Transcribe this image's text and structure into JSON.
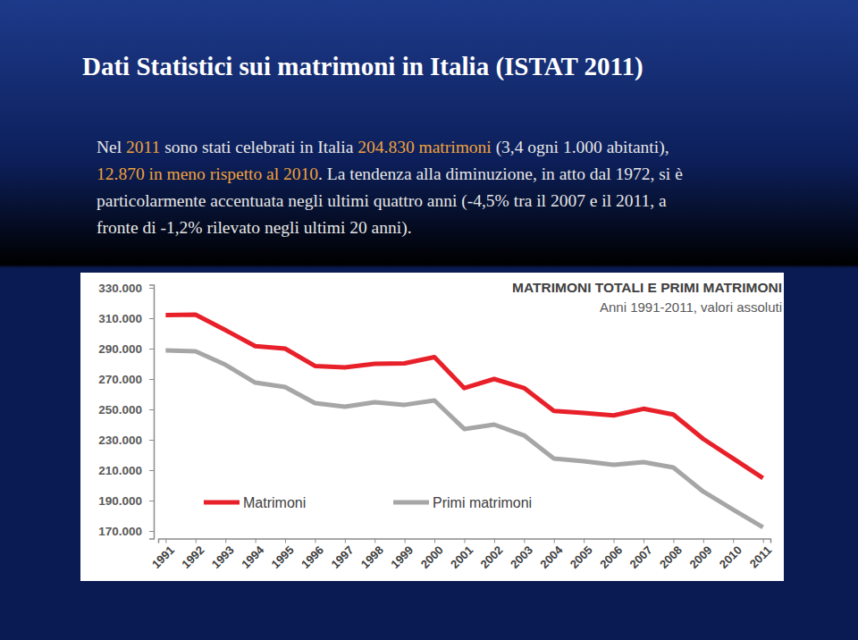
{
  "slide": {
    "title": "Dati Statistici sui matrimoni in Italia (ISTAT 2011)",
    "paragraph": [
      [
        {
          "text": "Nel ",
          "color": "#e6e6e6"
        },
        {
          "text": "2011",
          "color": "#f0a23c"
        },
        {
          "text": " sono stati celebrati in Italia ",
          "color": "#e6e6e6"
        },
        {
          "text": "204.830 matrimoni",
          "color": "#f0a23c"
        },
        {
          "text": " (3,4 ogni 1.000 abitanti),",
          "color": "#e6e6e6"
        }
      ],
      [
        {
          "text": "12.870 in meno rispetto al 2010",
          "color": "#f0a23c"
        },
        {
          "text": ". La tendenza alla diminuzione, in atto dal 1972, si è",
          "color": "#e6e6e6"
        }
      ],
      [
        {
          "text": "particolarmente accentuata negli ultimi quattro anni (-4,5% tra il 2007 e il 2011, a",
          "color": "#e6e6e6"
        }
      ],
      [
        {
          "text": "fronte di -1,2% rilevato negli ultimi 20 anni).",
          "color": "#e6e6e6"
        }
      ]
    ]
  },
  "chart_data": {
    "type": "line",
    "title": "MATRIMONI TOTALI E PRIMI MATRIMONI",
    "subtitle": "Anni 1991-2011, valori assoluti",
    "categories": [
      "1991",
      "1992",
      "1993",
      "1994",
      "1995",
      "1996",
      "1997",
      "1998",
      "1999",
      "2000",
      "2001",
      "2002",
      "2003",
      "2004",
      "2005",
      "2006",
      "2007",
      "2008",
      "2009",
      "2010",
      "2011"
    ],
    "series": [
      {
        "name": "Matrimoni",
        "color": "#e8202a",
        "values": [
          312000,
          312300,
          302200,
          291600,
          290000,
          278600,
          277700,
          280000,
          280300,
          284400,
          264000,
          270000,
          264100,
          249000,
          247700,
          246000,
          250400,
          246600,
          230600,
          217700,
          204830
        ]
      },
      {
        "name": "Primi matrimoni",
        "color": "#a6a6a6",
        "values": [
          288800,
          288200,
          279400,
          267600,
          264700,
          254100,
          251800,
          254700,
          253000,
          255900,
          237100,
          240000,
          232900,
          217600,
          215900,
          213500,
          215300,
          211800,
          195900,
          184100,
          172400
        ]
      }
    ],
    "ylim": [
      165000,
      332000
    ],
    "yticks": [
      {
        "value": 170000,
        "label": "170.000"
      },
      {
        "value": 190000,
        "label": "190.000"
      },
      {
        "value": 210000,
        "label": "210.000"
      },
      {
        "value": 230000,
        "label": "230.000"
      },
      {
        "value": 250000,
        "label": "250.000"
      },
      {
        "value": 270000,
        "label": "270.000"
      },
      {
        "value": 290000,
        "label": "290.000"
      },
      {
        "value": 310000,
        "label": "310.000"
      },
      {
        "value": 330000,
        "label": "330.000"
      }
    ],
    "grid": false,
    "legend": "bottom"
  }
}
